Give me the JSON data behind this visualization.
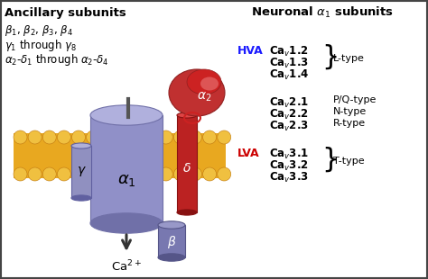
{
  "title_left": "Ancillary subunits",
  "title_right": "Neuronal $\\alpha_1$ subunits",
  "left_lines": [
    "$\\beta_1$, $\\beta_2$, $\\beta_3$, $\\beta_4$",
    "$\\gamma_1$ through $\\gamma_8$",
    "$\\alpha_2$-$\\delta_1$ through $\\alpha_2$-$\\delta_4$"
  ],
  "hva_label": "HVA",
  "lva_label": "LVA",
  "hva_color": "#1a1aff",
  "lva_color": "#cc0000",
  "hva_entries": [
    "Ca$_v$1.2",
    "Ca$_v$1.3",
    "Ca$_v$1.4"
  ],
  "hva_type": "L-type",
  "mid_entries": [
    "Ca$_v$2.1",
    "Ca$_v$2.2",
    "Ca$_v$2.3"
  ],
  "mid_types": [
    "P/Q-type",
    "N-type",
    "R-type"
  ],
  "lva_entries": [
    "Ca$_v$3.1",
    "Ca$_v$3.2",
    "Ca$_v$3.3"
  ],
  "lva_type": "T-type",
  "alpha1_color": "#9090c8",
  "alpha1_dark": "#7070a8",
  "alpha1_light": "#b0b0dd",
  "alpha2_color": "#c03030",
  "alpha2_dark": "#902020",
  "delta_color": "#bb2222",
  "delta_dark": "#881111",
  "beta_color": "#7878b0",
  "beta_dark": "#555588",
  "gamma_color": "#9090c0",
  "gamma_dark": "#6060a0",
  "membrane_yellow": "#e8a820",
  "membrane_gold": "#f0c040",
  "membrane_dark": "#c07810"
}
